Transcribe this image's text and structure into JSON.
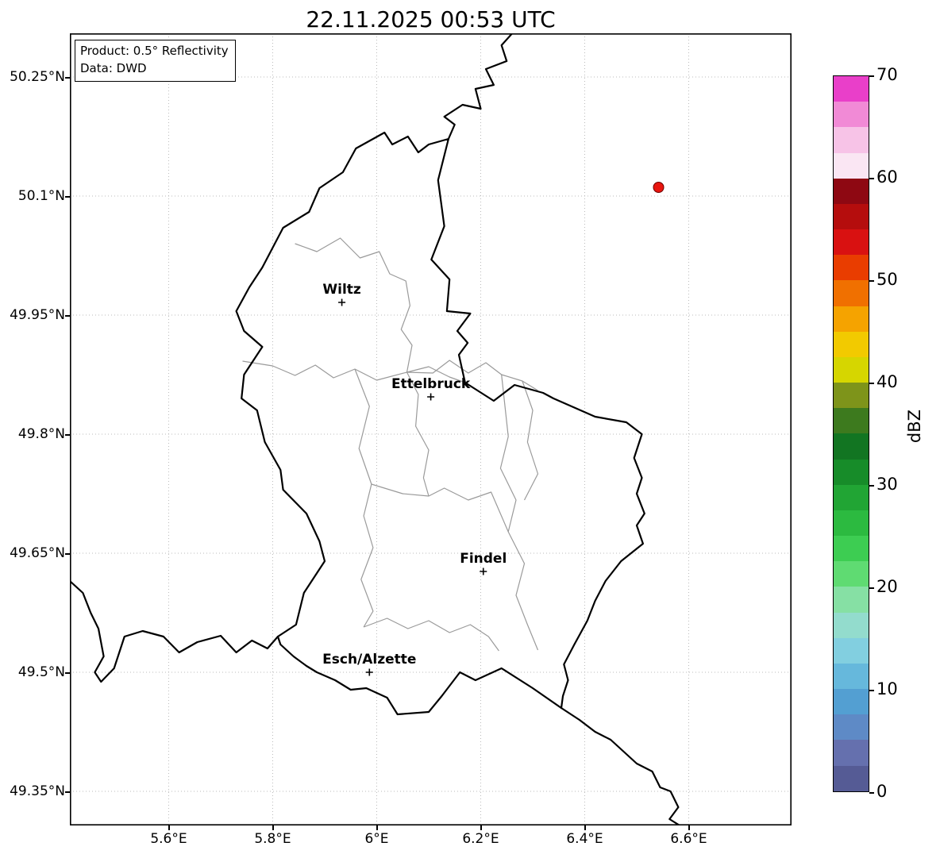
{
  "title": "22.11.2025 00:53 UTC",
  "info_box": {
    "line1": "Product: 0.5° Reflectivity",
    "line2": "Data: DWD"
  },
  "axes": {
    "x_ticks": [
      {
        "value": 5.6,
        "label": "5.6°E"
      },
      {
        "value": 5.8,
        "label": "5.8°E"
      },
      {
        "value": 6.0,
        "label": "6°E"
      },
      {
        "value": 6.2,
        "label": "6.2°E"
      },
      {
        "value": 6.4,
        "label": "6.4°E"
      },
      {
        "value": 6.6,
        "label": "6.6°E"
      }
    ],
    "y_ticks": [
      {
        "value": 50.25,
        "label": "50.25°N"
      },
      {
        "value": 50.1,
        "label": "50.1°N"
      },
      {
        "value": 49.95,
        "label": "49.95°N"
      },
      {
        "value": 49.8,
        "label": "49.8°N"
      },
      {
        "value": 49.65,
        "label": "49.65°N"
      },
      {
        "value": 49.5,
        "label": "49.5°N"
      },
      {
        "value": 49.35,
        "label": "49.35°N"
      }
    ]
  },
  "colorbar": {
    "label": "dBZ",
    "min": 0,
    "max": 70,
    "ticks": [
      0,
      10,
      20,
      30,
      40,
      50,
      60,
      70
    ],
    "colors_bottom_to_top": [
      "#555b95",
      "#6570ae",
      "#5e8ac6",
      "#539fd2",
      "#66b8dc",
      "#82cfe0",
      "#93dccd",
      "#86e0a4",
      "#5fdb72",
      "#3dcd52",
      "#2cba40",
      "#21a534",
      "#178c29",
      "#127522",
      "#3d7a1e",
      "#7e941a",
      "#d6d600",
      "#f2ca00",
      "#f5a300",
      "#f07000",
      "#e93d00",
      "#d91111",
      "#b50d0d",
      "#8e0812",
      "#fae6f3",
      "#f7c3e7",
      "#f18ad6",
      "#e93fc9"
    ]
  },
  "map": {
    "extent": {
      "lon_min": 5.41,
      "lon_max": 6.7977,
      "lat_min": 49.307,
      "lat_max": 50.305
    },
    "style": {
      "national_border_color": "#000000",
      "internal_border_color": "#9a9a9a",
      "grid_color": "#bbbbbb"
    },
    "cities": [
      {
        "name": "Wiltz",
        "lon": 5.933,
        "lat": 49.966
      },
      {
        "name": "Ettelbruck",
        "lon": 6.104,
        "lat": 49.847
      },
      {
        "name": "Findel",
        "lon": 6.205,
        "lat": 49.627
      },
      {
        "name": "Esch/Alzette",
        "lon": 5.986,
        "lat": 49.5
      }
    ],
    "borders_national": [
      [
        [
          6.138,
          50.172
        ],
        [
          6.118,
          50.12
        ],
        [
          6.13,
          50.062
        ],
        [
          6.105,
          50.02
        ],
        [
          6.14,
          49.995
        ],
        [
          6.135,
          49.955
        ],
        [
          6.18,
          49.952
        ],
        [
          6.155,
          49.93
        ],
        [
          6.175,
          49.915
        ],
        [
          6.158,
          49.9
        ],
        [
          6.17,
          49.865
        ],
        [
          6.225,
          49.842
        ],
        [
          6.265,
          49.862
        ],
        [
          6.32,
          49.852
        ],
        [
          6.34,
          49.845
        ],
        [
          6.42,
          49.822
        ],
        [
          6.48,
          49.815
        ],
        [
          6.51,
          49.8
        ],
        [
          6.495,
          49.77
        ],
        [
          6.51,
          49.745
        ],
        [
          6.5,
          49.725
        ],
        [
          6.515,
          49.7
        ],
        [
          6.5,
          49.685
        ],
        [
          6.512,
          49.662
        ],
        [
          6.47,
          49.64
        ],
        [
          6.44,
          49.615
        ],
        [
          6.42,
          49.59
        ],
        [
          6.405,
          49.565
        ],
        [
          6.38,
          49.535
        ],
        [
          6.36,
          49.51
        ],
        [
          6.368,
          49.49
        ],
        [
          6.358,
          49.47
        ],
        [
          6.355,
          49.455
        ],
        [
          6.3,
          49.48
        ],
        [
          6.24,
          49.505
        ],
        [
          6.19,
          49.49
        ],
        [
          6.16,
          49.5
        ],
        [
          6.125,
          49.47
        ],
        [
          6.1,
          49.45
        ],
        [
          6.04,
          49.447
        ],
        [
          6.02,
          49.468
        ],
        [
          5.98,
          49.48
        ],
        [
          5.95,
          49.478
        ],
        [
          5.92,
          49.49
        ],
        [
          5.885,
          49.5
        ],
        [
          5.865,
          49.508
        ],
        [
          5.84,
          49.52
        ],
        [
          5.815,
          49.535
        ],
        [
          5.81,
          49.545
        ],
        [
          5.845,
          49.56
        ],
        [
          5.86,
          49.6
        ],
        [
          5.9,
          49.64
        ],
        [
          5.89,
          49.665
        ],
        [
          5.865,
          49.7
        ],
        [
          5.82,
          49.73
        ],
        [
          5.815,
          49.755
        ],
        [
          5.785,
          49.79
        ],
        [
          5.77,
          49.83
        ],
        [
          5.74,
          49.845
        ],
        [
          5.745,
          49.875
        ],
        [
          5.78,
          49.91
        ],
        [
          5.745,
          49.93
        ],
        [
          5.73,
          49.955
        ],
        [
          5.755,
          49.985
        ],
        [
          5.78,
          50.01
        ],
        [
          5.82,
          50.06
        ],
        [
          5.87,
          50.08
        ],
        [
          5.89,
          50.11
        ],
        [
          5.935,
          50.13
        ],
        [
          5.96,
          50.16
        ],
        [
          6.015,
          50.18
        ],
        [
          6.03,
          50.165
        ],
        [
          6.06,
          50.175
        ],
        [
          6.08,
          50.155
        ],
        [
          6.1,
          50.165
        ],
        [
          6.138,
          50.172
        ]
      ],
      [
        [
          6.138,
          50.172
        ],
        [
          6.15,
          50.19
        ],
        [
          6.13,
          50.2
        ],
        [
          6.165,
          50.215
        ],
        [
          6.2,
          50.21
        ],
        [
          6.19,
          50.235
        ],
        [
          6.225,
          50.24
        ],
        [
          6.21,
          50.26
        ],
        [
          6.25,
          50.27
        ],
        [
          6.24,
          50.29
        ],
        [
          6.262,
          50.306
        ]
      ],
      [
        [
          5.41,
          49.615
        ],
        [
          5.435,
          49.6
        ],
        [
          5.45,
          49.575
        ],
        [
          5.465,
          49.555
        ],
        [
          5.475,
          49.52
        ],
        [
          5.458,
          49.5
        ],
        [
          5.47,
          49.488
        ],
        [
          5.495,
          49.505
        ],
        [
          5.515,
          49.545
        ],
        [
          5.55,
          49.552
        ],
        [
          5.59,
          49.545
        ],
        [
          5.62,
          49.525
        ],
        [
          5.655,
          49.538
        ],
        [
          5.7,
          49.546
        ],
        [
          5.73,
          49.525
        ],
        [
          5.76,
          49.54
        ],
        [
          5.79,
          49.53
        ],
        [
          5.81,
          49.545
        ]
      ],
      [
        [
          6.355,
          49.455
        ],
        [
          6.39,
          49.44
        ],
        [
          6.42,
          49.425
        ],
        [
          6.45,
          49.415
        ],
        [
          6.475,
          49.4
        ],
        [
          6.5,
          49.385
        ],
        [
          6.53,
          49.375
        ],
        [
          6.545,
          49.355
        ],
        [
          6.565,
          49.35
        ],
        [
          6.58,
          49.33
        ],
        [
          6.563,
          49.315
        ],
        [
          6.585,
          49.306
        ]
      ]
    ],
    "borders_internal": [
      [
        [
          5.843,
          50.04
        ],
        [
          5.885,
          50.03
        ],
        [
          5.93,
          50.047
        ],
        [
          5.968,
          50.022
        ],
        [
          6.005,
          50.03
        ],
        [
          6.025,
          50.002
        ],
        [
          6.056,
          49.993
        ],
        [
          6.064,
          49.962
        ],
        [
          6.047,
          49.932
        ],
        [
          6.068,
          49.912
        ],
        [
          6.058,
          49.878
        ]
      ],
      [
        [
          5.742,
          49.892
        ],
        [
          5.8,
          49.886
        ],
        [
          5.843,
          49.874
        ],
        [
          5.882,
          49.887
        ],
        [
          5.917,
          49.871
        ],
        [
          5.958,
          49.882
        ],
        [
          6.0,
          49.868
        ],
        [
          6.058,
          49.878
        ]
      ],
      [
        [
          6.058,
          49.878
        ],
        [
          6.1,
          49.885
        ],
        [
          6.14,
          49.872
        ],
        [
          6.17,
          49.865
        ]
      ],
      [
        [
          6.058,
          49.878
        ],
        [
          6.108,
          49.877
        ],
        [
          6.14,
          49.893
        ],
        [
          6.176,
          49.877
        ],
        [
          6.21,
          49.89
        ],
        [
          6.24,
          49.875
        ],
        [
          6.28,
          49.867
        ],
        [
          6.31,
          49.855
        ]
      ],
      [
        [
          5.958,
          49.882
        ],
        [
          5.986,
          49.835
        ],
        [
          5.966,
          49.782
        ],
        [
          5.99,
          49.737
        ],
        [
          5.975,
          49.697
        ],
        [
          5.993,
          49.657
        ],
        [
          5.97,
          49.617
        ],
        [
          5.993,
          49.577
        ],
        [
          5.975,
          49.557
        ]
      ],
      [
        [
          5.975,
          49.557
        ],
        [
          6.02,
          49.568
        ],
        [
          6.06,
          49.555
        ],
        [
          6.1,
          49.565
        ],
        [
          6.14,
          49.55
        ],
        [
          6.18,
          49.56
        ],
        [
          6.215,
          49.545
        ],
        [
          6.235,
          49.527
        ]
      ],
      [
        [
          6.24,
          49.875
        ],
        [
          6.253,
          49.797
        ],
        [
          6.238,
          49.757
        ],
        [
          6.268,
          49.717
        ],
        [
          6.253,
          49.677
        ],
        [
          6.284,
          49.637
        ],
        [
          6.268,
          49.597
        ],
        [
          6.29,
          49.56
        ],
        [
          6.31,
          49.528
        ]
      ],
      [
        [
          5.99,
          49.737
        ],
        [
          6.05,
          49.725
        ],
        [
          6.1,
          49.722
        ],
        [
          6.13,
          49.732
        ],
        [
          6.176,
          49.717
        ],
        [
          6.22,
          49.727
        ],
        [
          6.253,
          49.677
        ]
      ],
      [
        [
          6.058,
          49.878
        ],
        [
          6.08,
          49.85
        ],
        [
          6.075,
          49.81
        ],
        [
          6.1,
          49.78
        ],
        [
          6.09,
          49.745
        ],
        [
          6.1,
          49.722
        ]
      ],
      [
        [
          6.28,
          49.867
        ],
        [
          6.3,
          49.83
        ],
        [
          6.29,
          49.79
        ],
        [
          6.31,
          49.75
        ],
        [
          6.284,
          49.717
        ]
      ]
    ]
  },
  "chart_data": {
    "type": "map",
    "title": "22.11.2025 00:53 UTC",
    "product": "0.5° Reflectivity",
    "data_source": "DWD",
    "value_unit": "dBZ",
    "value_range": [
      0,
      70
    ],
    "echo_points": [
      {
        "lon": 6.542,
        "lat": 50.111,
        "color": "#e8150f"
      }
    ]
  }
}
